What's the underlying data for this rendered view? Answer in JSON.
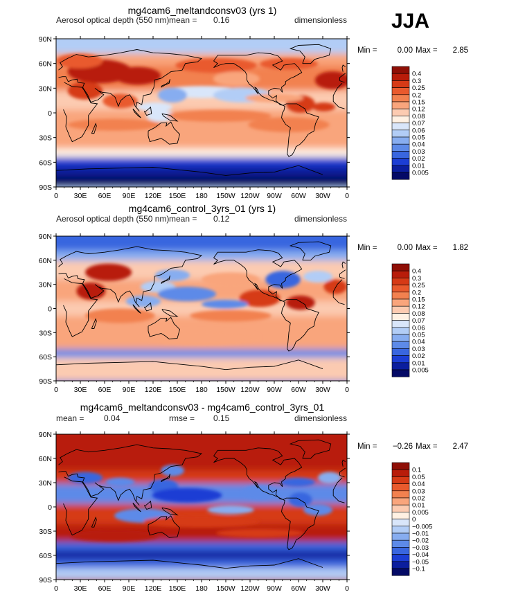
{
  "season": "JJA",
  "axis": {
    "lat_ticks": [
      "90N",
      "60N",
      "30N",
      "0",
      "30S",
      "60S",
      "90S"
    ],
    "lon_ticks": [
      "0",
      "30E",
      "60E",
      "90E",
      "120E",
      "150E",
      "180",
      "150W",
      "120W",
      "90W",
      "60W",
      "30W",
      "0"
    ]
  },
  "panels": [
    {
      "title": "mg4cam6_meltandconsv03 (yrs 1)",
      "left_label": "Aerosol optical depth (550 nm)",
      "mean_label": "mean =",
      "mean_value": "0.16",
      "units": "dimensionless",
      "min_label": "Min =",
      "min_value": "0.00",
      "max_label": "Max =",
      "max_value": "2.85",
      "legend_levels": [
        "0.4",
        "0.3",
        "0.25",
        "0.2",
        "0.15",
        "0.12",
        "0.08",
        "0.07",
        "0.06",
        "0.05",
        "0.04",
        "0.03",
        "0.02",
        "0.01",
        "0.005"
      ]
    },
    {
      "title": "mg4cam6_control_3yrs_01 (yrs 1)",
      "left_label": "Aerosol optical depth (550 nm)",
      "mean_label": "mean =",
      "mean_value": "0.12",
      "units": "dimensionless",
      "min_label": "Min =",
      "min_value": "0.00",
      "max_label": "Max =",
      "max_value": "1.82",
      "legend_levels": [
        "0.4",
        "0.3",
        "0.25",
        "0.2",
        "0.15",
        "0.12",
        "0.08",
        "0.07",
        "0.06",
        "0.05",
        "0.04",
        "0.03",
        "0.02",
        "0.01",
        "0.005"
      ]
    },
    {
      "title": "mg4cam6_meltandconsv03 - mg4cam6_control_3yrs_01",
      "left_label": "mean =",
      "left_value": "0.04",
      "rmse_label": "rmse =",
      "rmse_value": "0.15",
      "units": "dimensionless",
      "min_label": "Min =",
      "min_value": "−0.26",
      "max_label": "Max =",
      "max_value": "2.47",
      "legend_levels": [
        "0.1",
        "0.05",
        "0.04",
        "0.03",
        "0.02",
        "0.01",
        "0.005",
        "0",
        "−0.005",
        "−0.01",
        "−0.02",
        "−0.03",
        "−0.04",
        "−0.05",
        "−0.1"
      ]
    }
  ],
  "colors": {
    "scale_top_to_bottom": [
      "#8f0f06",
      "#b81c0a",
      "#d63a16",
      "#e95a2d",
      "#f2814f",
      "#f9a57c",
      "#fccbb1",
      "#fff1e3",
      "#d9e6fa",
      "#b2cdf6",
      "#87adf0",
      "#5d8ae8",
      "#3966df",
      "#1c3ed4",
      "#0b1e9e",
      "#040a66"
    ]
  },
  "chart_data": [
    {
      "type": "heatmap",
      "title": "mg4cam6_meltandconsv03 (yrs 1)",
      "variable": "Aerosol optical depth (550 nm)",
      "season": "JJA",
      "units": "dimensionless",
      "mean": 0.16,
      "min": 0.0,
      "max": 2.85,
      "x_ticks": [
        "0",
        "30E",
        "60E",
        "90E",
        "120E",
        "150E",
        "180",
        "150W",
        "120W",
        "90W",
        "60W",
        "30W",
        "0"
      ],
      "y_ticks": [
        "90N",
        "60N",
        "30N",
        "0",
        "30S",
        "60S",
        "90S"
      ],
      "levels": [
        0.005,
        0.01,
        0.02,
        0.03,
        0.04,
        0.05,
        0.06,
        0.07,
        0.08,
        0.12,
        0.15,
        0.2,
        0.25,
        0.3,
        0.4
      ]
    },
    {
      "type": "heatmap",
      "title": "mg4cam6_control_3yrs_01 (yrs 1)",
      "variable": "Aerosol optical depth (550 nm)",
      "season": "JJA",
      "units": "dimensionless",
      "mean": 0.12,
      "min": 0.0,
      "max": 1.82,
      "x_ticks": [
        "0",
        "30E",
        "60E",
        "90E",
        "120E",
        "150E",
        "180",
        "150W",
        "120W",
        "90W",
        "60W",
        "30W",
        "0"
      ],
      "y_ticks": [
        "90N",
        "60N",
        "30N",
        "0",
        "30S",
        "60S",
        "90S"
      ],
      "levels": [
        0.005,
        0.01,
        0.02,
        0.03,
        0.04,
        0.05,
        0.06,
        0.07,
        0.08,
        0.12,
        0.15,
        0.2,
        0.25,
        0.3,
        0.4
      ]
    },
    {
      "type": "heatmap",
      "title": "mg4cam6_meltandconsv03 - mg4cam6_control_3yrs_01",
      "season": "JJA",
      "units": "dimensionless",
      "mean": 0.04,
      "rmse": 0.15,
      "min": -0.26,
      "max": 2.47,
      "x_ticks": [
        "0",
        "30E",
        "60E",
        "90E",
        "120E",
        "150E",
        "180",
        "150W",
        "120W",
        "90W",
        "60W",
        "30W",
        "0"
      ],
      "y_ticks": [
        "90N",
        "60N",
        "30N",
        "0",
        "30S",
        "60S",
        "90S"
      ],
      "levels": [
        -0.1,
        -0.05,
        -0.04,
        -0.03,
        -0.02,
        -0.01,
        -0.005,
        0,
        0.005,
        0.01,
        0.02,
        0.03,
        0.04,
        0.05,
        0.1
      ]
    }
  ]
}
